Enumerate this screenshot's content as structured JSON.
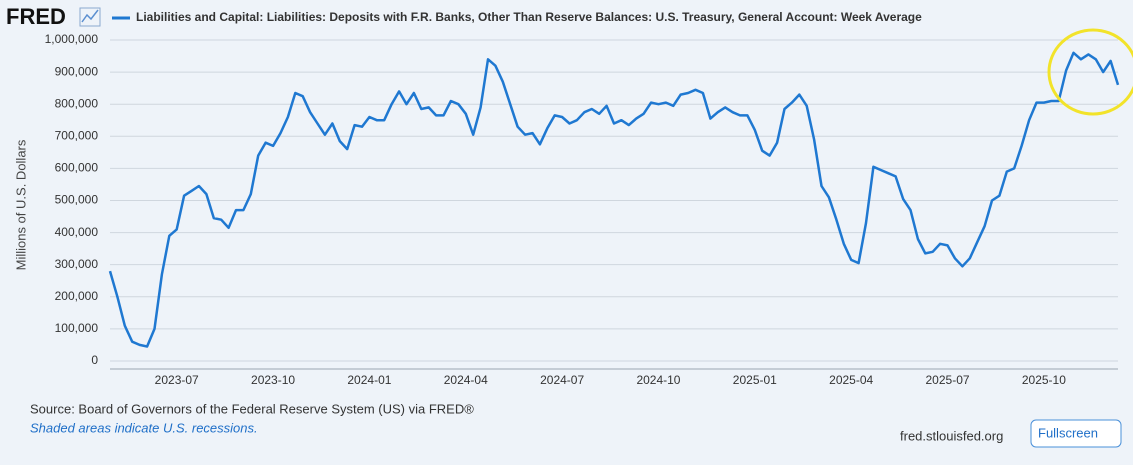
{
  "chart_data": {
    "type": "line",
    "logo": "FRED",
    "ylabel": "Millions of U.S. Dollars",
    "source": "Source: Board of Governors of the Federal Reserve System (US) via FRED®",
    "note": "Shaded areas indicate U.S. recessions.",
    "site": "fred.stlouisfed.org",
    "button": "Fullscreen",
    "grid": true,
    "ylim": [
      -25000,
      1000000
    ],
    "yticks": [
      0,
      {
        "value": 100000,
        "label": "100,000"
      },
      {
        "value": 200000,
        "label": "200,000"
      },
      {
        "value": 300000,
        "label": "300,000"
      },
      {
        "value": 400000,
        "label": "400,000"
      },
      {
        "value": 500000,
        "label": "500,000"
      },
      {
        "value": 600000,
        "label": "600,000"
      },
      {
        "value": 700000,
        "label": "700,000"
      },
      {
        "value": 800000,
        "label": "800,000"
      },
      {
        "value": 900000,
        "label": "900,000"
      },
      {
        "value": 1000000,
        "label": "1,000,000"
      }
    ],
    "categories": [
      null,
      null,
      null,
      null,
      null,
      null,
      null,
      null,
      null,
      "2023-07",
      null,
      null,
      null,
      null,
      null,
      null,
      null,
      null,
      null,
      null,
      null,
      null,
      "2023-10",
      null,
      null,
      null,
      null,
      null,
      null,
      null,
      null,
      null,
      null,
      null,
      null,
      "2024-01",
      null,
      null,
      null,
      null,
      null,
      null,
      null,
      null,
      null,
      null,
      null,
      null,
      "2024-04",
      null,
      null,
      null,
      null,
      null,
      null,
      null,
      null,
      null,
      null,
      null,
      null,
      "2024-07",
      null,
      null,
      null,
      null,
      null,
      null,
      null,
      null,
      null,
      null,
      null,
      null,
      "2024-10",
      null,
      null,
      null,
      null,
      null,
      null,
      null,
      null,
      null,
      null,
      null,
      null,
      "2025-01",
      null,
      null,
      null,
      null,
      null,
      null,
      null,
      null,
      null,
      null,
      null,
      null,
      "2025-04",
      null,
      null,
      null,
      null,
      null,
      null,
      null,
      null,
      null,
      null,
      null,
      null,
      "2025-07",
      null,
      null,
      null,
      null,
      null,
      null,
      null,
      null,
      null,
      null,
      null,
      null,
      "2025-10",
      null,
      null,
      null,
      null,
      null,
      null,
      null,
      null,
      null,
      null
    ],
    "series": [
      {
        "name": "Liabilities and Capital: Liabilities: Deposits with F.R. Banks, Other Than Reserve Balances: U.S. Treasury, General Account: Week Average",
        "color": "#1f78d1",
        "values": [
          280000,
          200000,
          110000,
          60000,
          50000,
          45000,
          100000,
          270000,
          390000,
          410000,
          515000,
          530000,
          545000,
          520000,
          445000,
          440000,
          415000,
          470000,
          470000,
          520000,
          640000,
          680000,
          670000,
          710000,
          760000,
          835000,
          825000,
          775000,
          740000,
          705000,
          740000,
          685000,
          660000,
          735000,
          730000,
          760000,
          750000,
          750000,
          800000,
          840000,
          800000,
          835000,
          785000,
          790000,
          765000,
          765000,
          810000,
          800000,
          770000,
          705000,
          790000,
          940000,
          920000,
          870000,
          800000,
          730000,
          705000,
          710000,
          675000,
          725000,
          765000,
          760000,
          740000,
          750000,
          775000,
          785000,
          770000,
          795000,
          740000,
          750000,
          735000,
          755000,
          770000,
          805000,
          800000,
          805000,
          795000,
          830000,
          835000,
          845000,
          835000,
          755000,
          775000,
          790000,
          775000,
          765000,
          765000,
          720000,
          655000,
          640000,
          680000,
          785000,
          805000,
          830000,
          795000,
          690000,
          545000,
          510000,
          440000,
          365000,
          315000,
          305000,
          430000,
          605000,
          595000,
          585000,
          575000,
          505000,
          470000,
          380000,
          335000,
          340000,
          365000,
          360000,
          320000,
          295000,
          320000,
          370000,
          420000,
          500000,
          515000,
          590000,
          600000,
          670000,
          750000,
          805000,
          805000,
          810000,
          810000,
          905000,
          960000,
          940000,
          955000,
          940000,
          900000,
          935000,
          860000
        ]
      }
    ]
  }
}
